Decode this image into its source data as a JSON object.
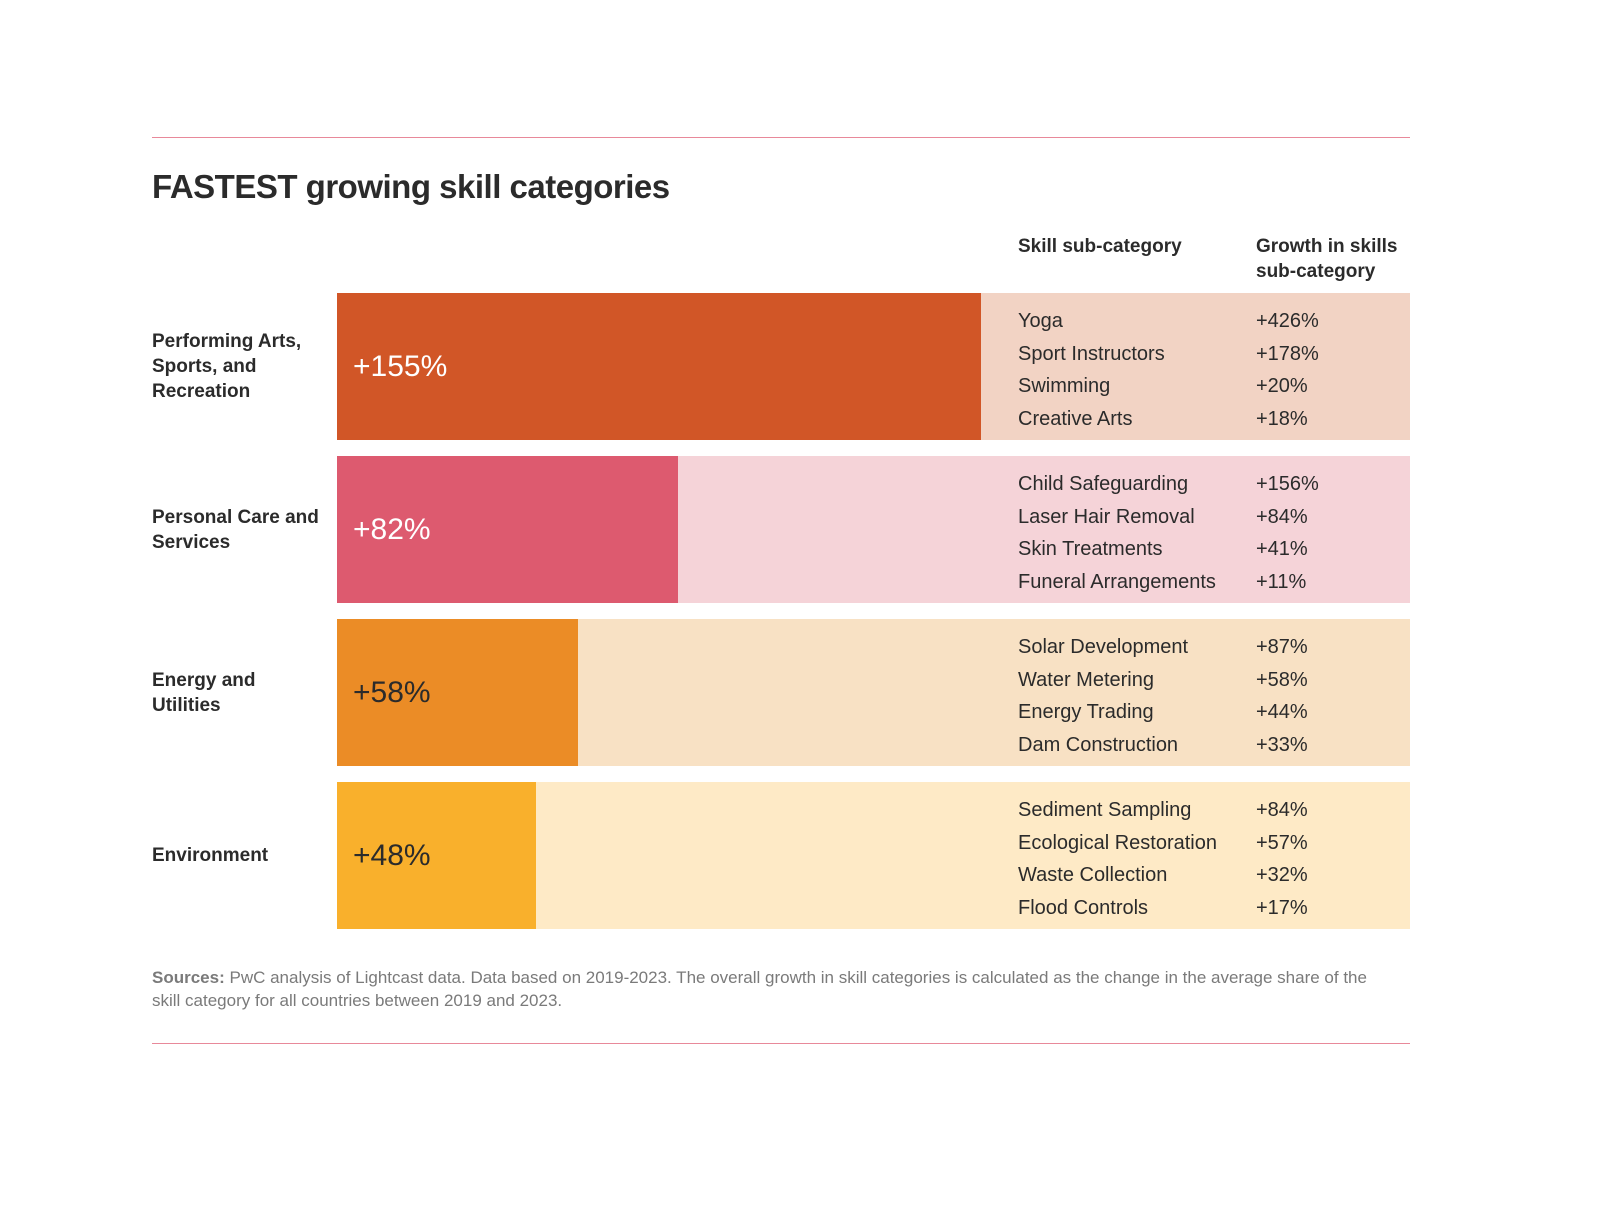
{
  "chart_data": {
    "type": "bar",
    "orientation": "horizontal",
    "title": "FASTEST growing skill categories",
    "categories": [
      "Performing Arts, Sports, and Recreation",
      "Personal Care and Services",
      "Energy and Utilities",
      "Environment"
    ],
    "values": [
      155,
      82,
      58,
      48
    ],
    "value_labels": [
      "+155%",
      "+82%",
      "+58%",
      "+48%"
    ],
    "colors": [
      "#d15627",
      "#dd5a6f",
      "#eb8c26",
      "#f9b02c"
    ],
    "panel_colors": [
      "#f2d3c4",
      "#f5d3d8",
      "#f8e1c4",
      "#feeac6"
    ],
    "value_label_colors": [
      "#ffffff",
      "#ffffff",
      "#2b2b2b",
      "#2b2b2b"
    ],
    "table_headers": [
      "Skill sub-category",
      "Growth in skills sub-category"
    ],
    "subcategories": [
      {
        "names": [
          "Yoga",
          "Sport Instructors",
          "Swimming",
          "Creative Arts"
        ],
        "growth": [
          "+426%",
          "+178%",
          "+20%",
          "+18%"
        ]
      },
      {
        "names": [
          "Child Safeguarding",
          "Laser Hair Removal",
          "Skin Treatments",
          "Funeral Arrangements"
        ],
        "growth": [
          "+156%",
          "+84%",
          "+41%",
          "+11%"
        ]
      },
      {
        "names": [
          "Solar Development",
          "Water Metering",
          "Energy Trading",
          "Dam Construction"
        ],
        "growth": [
          "+87%",
          "+58%",
          "+44%",
          "+33%"
        ]
      },
      {
        "names": [
          "Sediment Sampling",
          "Ecological Restoration",
          "Waste Collection",
          "Flood Controls"
        ],
        "growth": [
          "+84%",
          "+57%",
          "+32%",
          "+17%"
        ]
      }
    ],
    "source_label": "Sources:",
    "source": "PwC analysis of Lightcast data. Data based on 2019-2023. The overall growth in skill categories is calculated as the change in the average share of the skill category for all countries between 2019 and 2023."
  }
}
